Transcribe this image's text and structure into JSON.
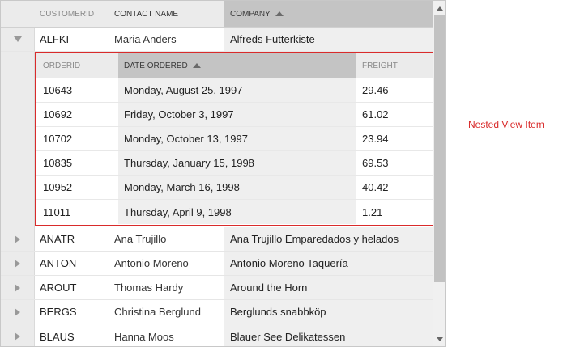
{
  "grid": {
    "columns": [
      {
        "label": "CUSTOMERID",
        "sorted": false
      },
      {
        "label": "CONTACT NAME",
        "sorted": false
      },
      {
        "label": "COMPANY",
        "sorted": true
      }
    ],
    "expanded_row": {
      "customerid": "ALFKI",
      "contact": "Maria Anders",
      "company": "Alfreds Futterkiste"
    },
    "rows": [
      {
        "customerid": "ANATR",
        "contact": "Ana Trujillo",
        "company": "Ana Trujillo Emparedados y helados"
      },
      {
        "customerid": "ANTON",
        "contact": "Antonio Moreno",
        "company": "Antonio Moreno Taquería"
      },
      {
        "customerid": "AROUT",
        "contact": "Thomas Hardy",
        "company": "Around the Horn"
      },
      {
        "customerid": "BERGS",
        "contact": "Christina Berglund",
        "company": "Berglunds snabbköp"
      },
      {
        "customerid": "BLAUS",
        "contact": "Hanna Moos",
        "company": "Blauer See Delikatessen"
      }
    ]
  },
  "nested": {
    "columns": [
      {
        "label": "ORDERID",
        "sorted": false
      },
      {
        "label": "DATE ORDERED",
        "sorted": true
      },
      {
        "label": "FREIGHT",
        "sorted": false
      }
    ],
    "rows": [
      {
        "orderid": "10643",
        "date": "Monday, August 25, 1997",
        "freight": "29.46"
      },
      {
        "orderid": "10692",
        "date": "Friday, October 3, 1997",
        "freight": "61.02"
      },
      {
        "orderid": "10702",
        "date": "Monday, October 13, 1997",
        "freight": "23.94"
      },
      {
        "orderid": "10835",
        "date": "Thursday, January 15, 1998",
        "freight": "69.53"
      },
      {
        "orderid": "10952",
        "date": "Monday, March 16, 1998",
        "freight": "40.42"
      },
      {
        "orderid": "11011",
        "date": "Thursday, April 9, 1998",
        "freight": "1.21"
      }
    ]
  },
  "callout": {
    "label": "Nested View Item",
    "color": "#d92b2b"
  },
  "icons": {
    "expand": "triangle-right-icon",
    "collapse": "triangle-down-icon",
    "sort": "sort-ascending-icon"
  }
}
